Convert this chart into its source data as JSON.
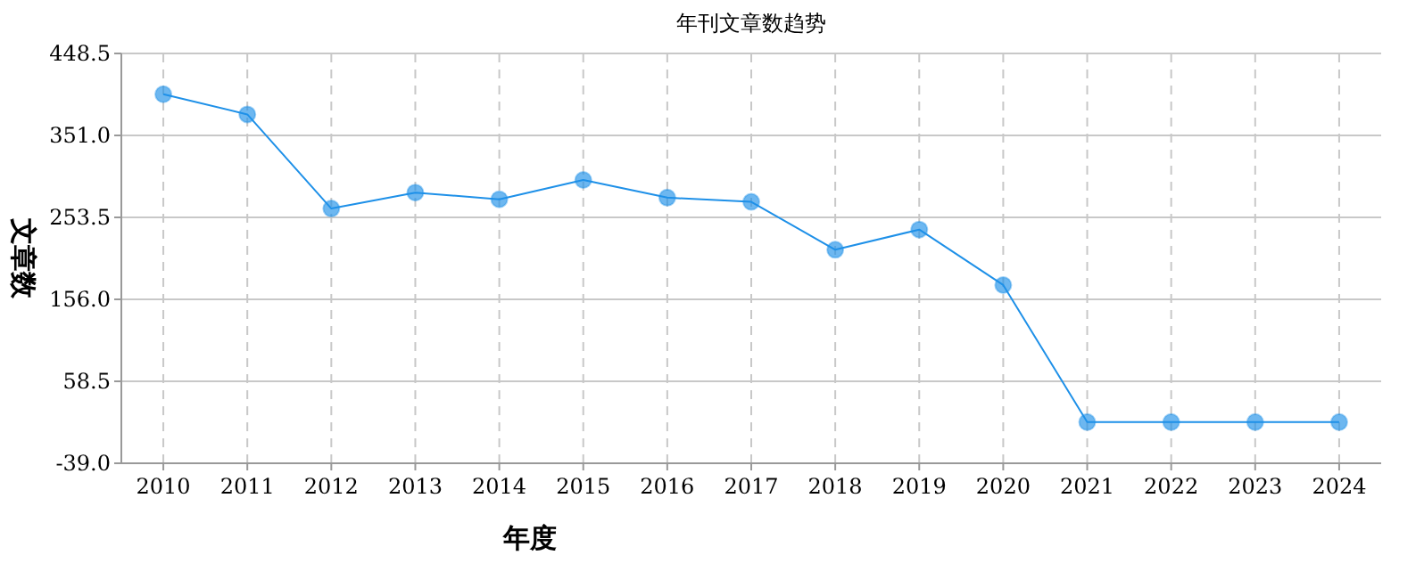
{
  "chart_data": {
    "type": "line",
    "title": "年刊文章数趋势",
    "xlabel": "年度",
    "ylabel": "文章数",
    "categories": [
      "2010",
      "2011",
      "2012",
      "2013",
      "2014",
      "2015",
      "2016",
      "2017",
      "2018",
      "2019",
      "2020",
      "2021",
      "2022",
      "2023",
      "2024"
    ],
    "series": [
      {
        "color": "#1e90e8",
        "values": [
          400,
          376,
          264,
          283,
          275,
          298,
          277,
          272,
          215,
          239,
          173,
          10,
          10,
          10,
          10
        ]
      }
    ],
    "ylim": [
      -39,
      448.5
    ],
    "yticks": [
      {
        "value": -39,
        "label": "-39.0"
      },
      {
        "value": 58.5,
        "label": "58.5"
      },
      {
        "value": 156,
        "label": "156.0"
      },
      {
        "value": 253.5,
        "label": "253.5"
      },
      {
        "value": 351,
        "label": "351.0"
      },
      {
        "value": 448.5,
        "label": "448.5"
      }
    ],
    "grid": true,
    "marker": "circle",
    "line_style": "solid"
  }
}
